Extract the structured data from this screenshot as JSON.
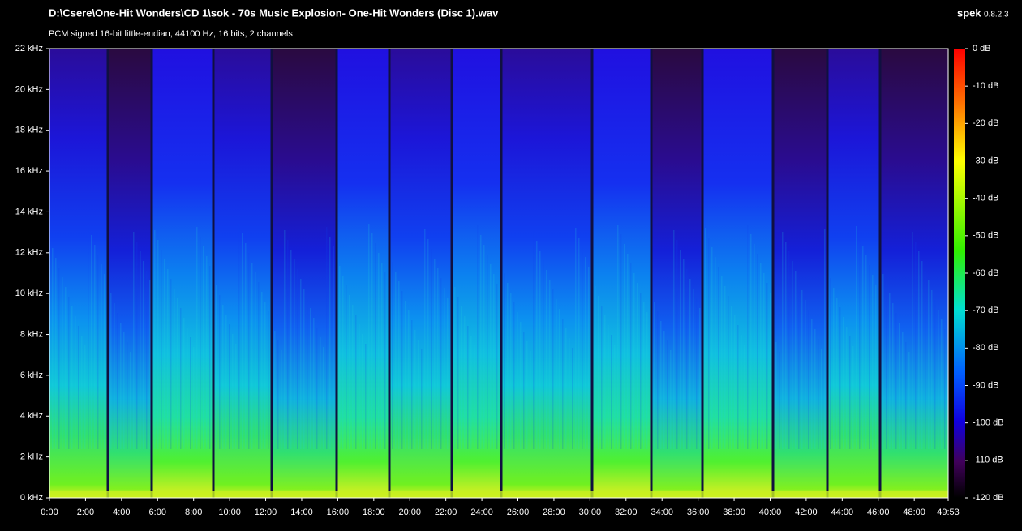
{
  "chart_data": {
    "type": "spectrogram",
    "title": "D:\\Csere\\One-Hit Wonders\\CD 1\\sok - 70s Music Explosion- One-Hit Wonders (Disc 1).wav",
    "subtitle": "PCM signed 16-bit little-endian, 44100 Hz, 16 bits, 2 channels",
    "app_name": "spek",
    "app_version": "0.8.2.3",
    "xlim": [
      0,
      2993
    ],
    "xticks": [
      {
        "value": 0,
        "label": "0:00"
      },
      {
        "value": 120,
        "label": "2:00"
      },
      {
        "value": 240,
        "label": "4:00"
      },
      {
        "value": 360,
        "label": "6:00"
      },
      {
        "value": 480,
        "label": "8:00"
      },
      {
        "value": 600,
        "label": "10:00"
      },
      {
        "value": 720,
        "label": "12:00"
      },
      {
        "value": 840,
        "label": "14:00"
      },
      {
        "value": 960,
        "label": "16:00"
      },
      {
        "value": 1080,
        "label": "18:00"
      },
      {
        "value": 1200,
        "label": "20:00"
      },
      {
        "value": 1320,
        "label": "22:00"
      },
      {
        "value": 1440,
        "label": "24:00"
      },
      {
        "value": 1560,
        "label": "26:00"
      },
      {
        "value": 1680,
        "label": "28:00"
      },
      {
        "value": 1800,
        "label": "30:00"
      },
      {
        "value": 1920,
        "label": "32:00"
      },
      {
        "value": 2040,
        "label": "34:00"
      },
      {
        "value": 2160,
        "label": "36:00"
      },
      {
        "value": 2280,
        "label": "38:00"
      },
      {
        "value": 2400,
        "label": "40:00"
      },
      {
        "value": 2520,
        "label": "42:00"
      },
      {
        "value": 2640,
        "label": "44:00"
      },
      {
        "value": 2760,
        "label": "46:00"
      },
      {
        "value": 2880,
        "label": "48:00"
      },
      {
        "value": 2993,
        "label": "49:53"
      }
    ],
    "ylim": [
      0,
      22
    ],
    "yticks": [
      {
        "value": 0,
        "label": "0 kHz"
      },
      {
        "value": 2,
        "label": "2 kHz"
      },
      {
        "value": 4,
        "label": "4 kHz"
      },
      {
        "value": 6,
        "label": "6 kHz"
      },
      {
        "value": 8,
        "label": "8 kHz"
      },
      {
        "value": 10,
        "label": "10 kHz"
      },
      {
        "value": 12,
        "label": "12 kHz"
      },
      {
        "value": 14,
        "label": "14 kHz"
      },
      {
        "value": 16,
        "label": "16 kHz"
      },
      {
        "value": 18,
        "label": "18 kHz"
      },
      {
        "value": 20,
        "label": "20 kHz"
      },
      {
        "value": 22,
        "label": "22 kHz"
      }
    ],
    "dblim": [
      -120,
      0
    ],
    "dbticks": [
      {
        "value": 0,
        "label": "0 dB"
      },
      {
        "value": -10,
        "label": "-10 dB"
      },
      {
        "value": -20,
        "label": "-20 dB"
      },
      {
        "value": -30,
        "label": "-30 dB"
      },
      {
        "value": -40,
        "label": "-40 dB"
      },
      {
        "value": -50,
        "label": "-50 dB"
      },
      {
        "value": -60,
        "label": "-60 dB"
      },
      {
        "value": -70,
        "label": "-70 dB"
      },
      {
        "value": -80,
        "label": "-80 dB"
      },
      {
        "value": -90,
        "label": "-90 dB"
      },
      {
        "value": -100,
        "label": "-100 dB"
      },
      {
        "value": -110,
        "label": "-110 dB"
      },
      {
        "value": -120,
        "label": "-120 dB"
      }
    ]
  }
}
